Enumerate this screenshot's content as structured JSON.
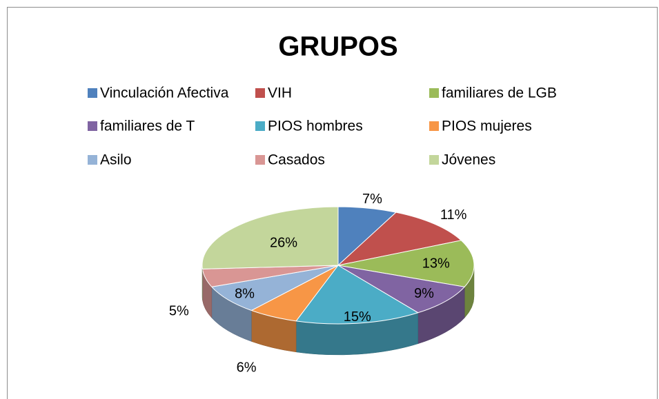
{
  "chart_data": {
    "type": "pie",
    "title": "GRUPOS",
    "categories": [
      "Vinculación Afectiva",
      "VIH",
      "familiares de LGB",
      "familiares de T",
      "PIOS hombres",
      "PIOS mujeres",
      "Asilo",
      "Casados",
      "Jóvenes"
    ],
    "values": [
      7,
      11,
      13,
      9,
      15,
      6,
      8,
      5,
      26
    ],
    "value_labels": [
      "7%",
      "11%",
      "13%",
      "9%",
      "15%",
      "6%",
      "8%",
      "5%",
      "26%"
    ],
    "colors": [
      "#4F81BD",
      "#C0504D",
      "#9BBB59",
      "#8064A2",
      "#4BACC6",
      "#F79646",
      "#95B3D7",
      "#D99694",
      "#C3D69B"
    ],
    "legend": "top"
  }
}
